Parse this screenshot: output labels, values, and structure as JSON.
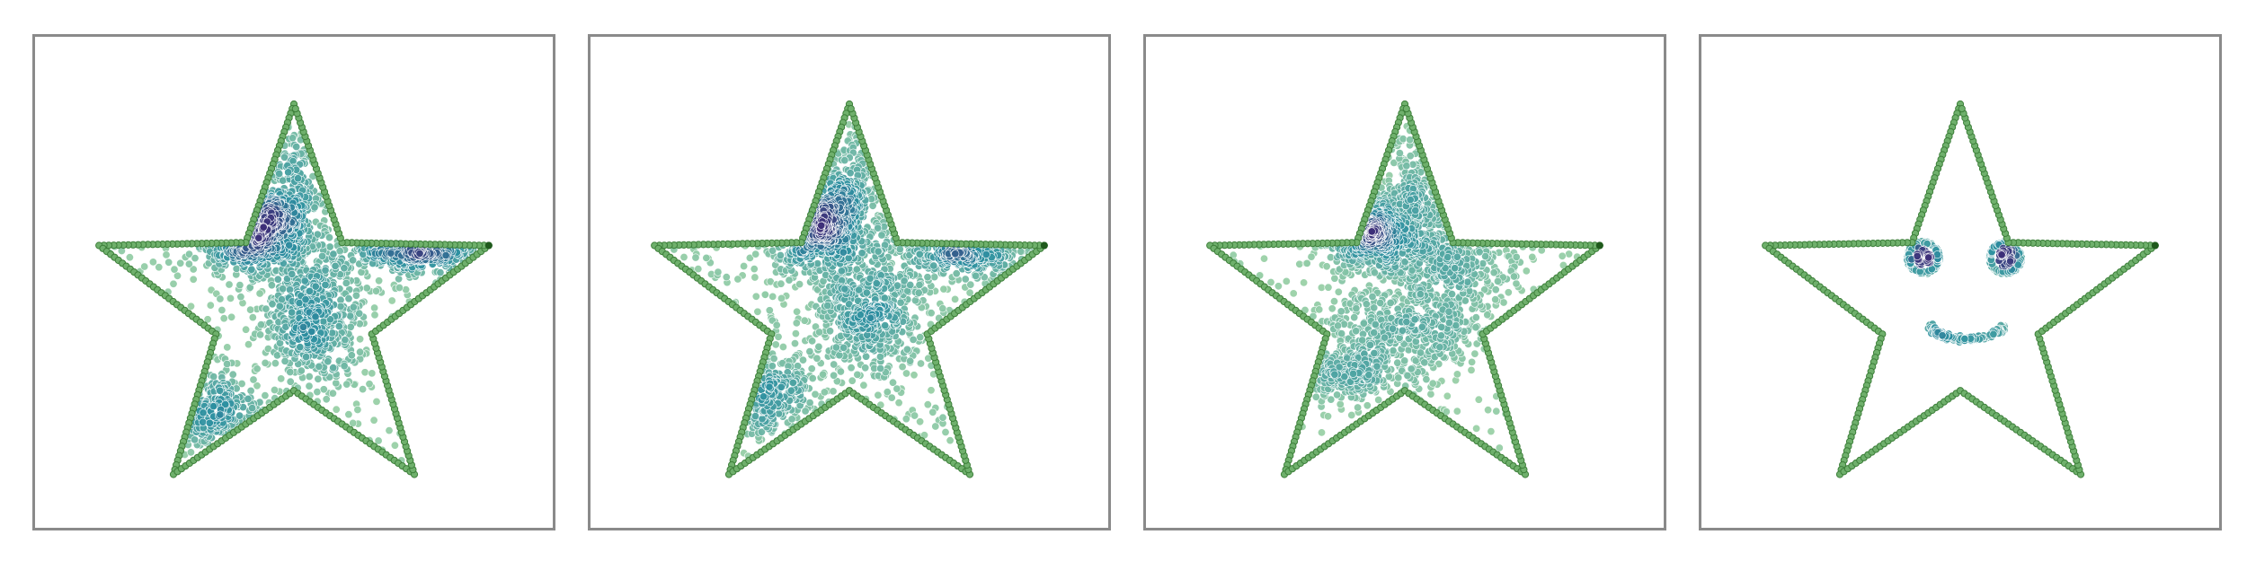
{
  "colors": {
    "outline_fill": "#6fb06c",
    "outline_edge": "#3d7f3a",
    "outline_end": "#1f5a1c",
    "density_low": "#9ed3a7",
    "density_mid": "#2c8fa0",
    "density_high": "#3d2e78",
    "frame": "#8a8a8a"
  },
  "chart_data": [
    {
      "type": "scatter",
      "panel": 1,
      "shape": "star outline (5-pointed)",
      "star": {
        "center": [
          0,
          0
        ],
        "outer_radius": 1.0,
        "inner_radius": 0.4,
        "points": 5,
        "start_angle_deg": 90,
        "outline_points": 300
      },
      "clusters": [
        {
          "center": [
            -0.22,
            0.39
          ],
          "spread": [
            0.14,
            0.1
          ],
          "count": 620
        },
        {
          "center": [
            0.1,
            -0.05
          ],
          "spread": [
            0.12,
            0.16
          ],
          "count": 520
        },
        {
          "center": [
            0.6,
            0.34
          ],
          "spread": [
            0.16,
            0.07
          ],
          "count": 380
        },
        {
          "center": [
            -0.4,
            -0.5
          ],
          "spread": [
            0.12,
            0.08
          ],
          "count": 230
        },
        {
          "center": [
            0.0,
            0.58
          ],
          "spread": [
            0.07,
            0.16
          ],
          "count": 180
        }
      ],
      "scatter_background": 260
    },
    {
      "type": "scatter",
      "panel": 2,
      "shape": "star outline (5-pointed)",
      "star": {
        "center": [
          0,
          0
        ],
        "outer_radius": 1.0,
        "inner_radius": 0.4,
        "points": 5,
        "start_angle_deg": 90,
        "outline_points": 300
      },
      "clusters": [
        {
          "center": [
            -0.18,
            0.43
          ],
          "spread": [
            0.13,
            0.12
          ],
          "count": 640
        },
        {
          "center": [
            0.1,
            -0.02
          ],
          "spread": [
            0.13,
            0.16
          ],
          "count": 520
        },
        {
          "center": [
            0.55,
            0.33
          ],
          "spread": [
            0.16,
            0.08
          ],
          "count": 330
        },
        {
          "center": [
            -0.42,
            -0.42
          ],
          "spread": [
            0.13,
            0.1
          ],
          "count": 250
        },
        {
          "center": [
            0.02,
            0.56
          ],
          "spread": [
            0.06,
            0.16
          ],
          "count": 160
        }
      ],
      "scatter_background": 300
    },
    {
      "type": "scatter",
      "panel": 3,
      "shape": "star outline (5-pointed)",
      "star": {
        "center": [
          0,
          0
        ],
        "outer_radius": 1.0,
        "inner_radius": 0.4,
        "points": 5,
        "start_angle_deg": 90,
        "outline_points": 300
      },
      "clusters": [
        {
          "center": [
            -0.2,
            0.38
          ],
          "spread": [
            0.12,
            0.09
          ],
          "count": 560
        },
        {
          "center": [
            0.2,
            0.25
          ],
          "spread": [
            0.16,
            0.18
          ],
          "count": 500
        },
        {
          "center": [
            0.0,
            -0.1
          ],
          "spread": [
            0.2,
            0.1
          ],
          "count": 320
        },
        {
          "center": [
            -0.3,
            -0.3
          ],
          "spread": [
            0.18,
            0.08
          ],
          "count": 260
        },
        {
          "center": [
            0.05,
            0.55
          ],
          "spread": [
            0.07,
            0.14
          ],
          "count": 160
        }
      ],
      "scatter_background": 220
    },
    {
      "type": "scatter",
      "panel": 4,
      "shape": "star outline with smiley face",
      "star": {
        "center": [
          0,
          0
        ],
        "outer_radius": 1.0,
        "inner_radius": 0.4,
        "points": 5,
        "start_angle_deg": 90,
        "outline_points": 300
      },
      "eyes": [
        {
          "center": [
            -0.18,
            0.25
          ],
          "ring_radius": 0.075,
          "count": 170
        },
        {
          "center": [
            0.22,
            0.25
          ],
          "ring_radius": 0.075,
          "count": 170
        }
      ],
      "smile": {
        "center": [
          0.03,
          -0.04
        ],
        "radius": 0.2,
        "angle_range_deg": [
          200,
          340
        ],
        "count": 140
      }
    }
  ]
}
